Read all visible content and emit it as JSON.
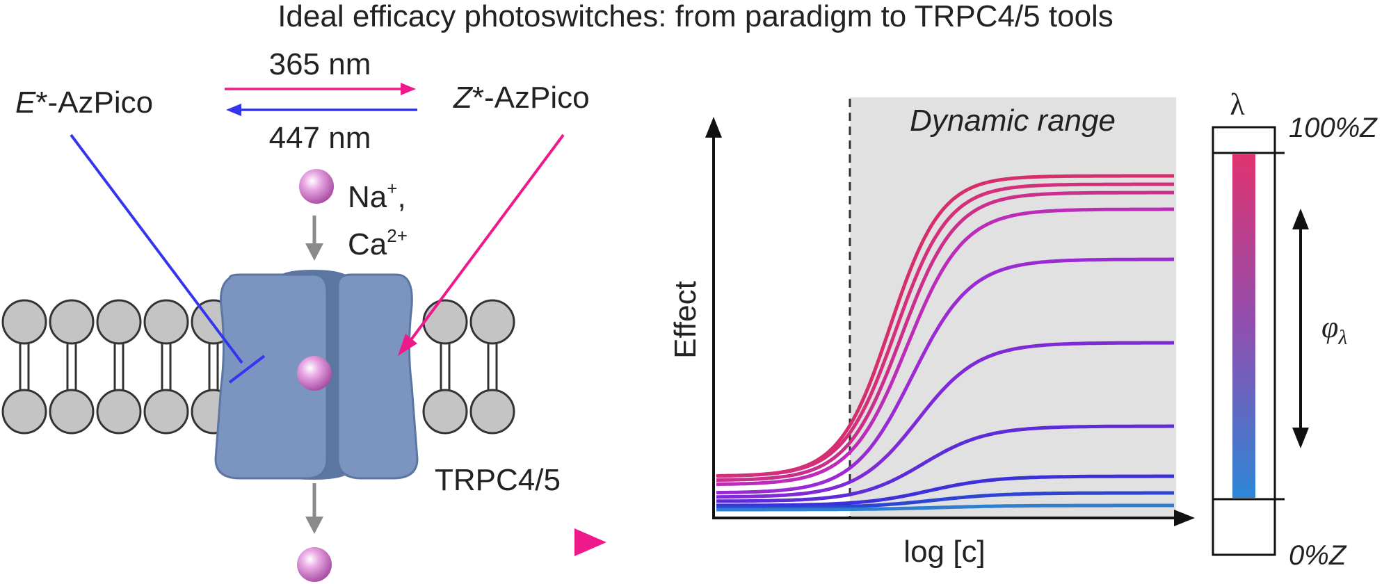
{
  "title": "Ideal efficacy photoswitches: from paradigm to TRPC4/5 tools",
  "left_panel": {
    "e_isomer_prefix": "E",
    "e_isomer_suffix": "*-AzPico",
    "z_isomer_prefix": "Z",
    "z_isomer_suffix": "*-AzPico",
    "forward_wavelength": "365 nm",
    "reverse_wavelength": "447 nm",
    "ion_line1": "Na",
    "ion_line1_sup": "+",
    "ion_line1_punct": ",",
    "ion_line2": "Ca",
    "ion_line2_sup": "2+",
    "channel_label": "TRPC4/5",
    "colors": {
      "blue_inhibit": "#3535f0",
      "magenta_activate": "#ee1a8c",
      "channel_body": "#7b95c0",
      "channel_dark": "#5c76a2",
      "lipid_head": "#c4c4c4"
    }
  },
  "chart_data": {
    "type": "line",
    "title": "",
    "xlabel": "log [c]",
    "ylabel": "Effect",
    "shaded_region_label": "Dynamic range",
    "threshold_x": 0.33,
    "series": [
      {
        "values_min": 0.08,
        "values_max": 0.8,
        "color": "#d62d6c"
      },
      {
        "values_min": 0.08,
        "values_max": 0.78,
        "color": "#d32f7a"
      },
      {
        "values_min": 0.07,
        "values_max": 0.76,
        "color": "#cc2e8c"
      },
      {
        "values_min": 0.06,
        "values_max": 0.72,
        "color": "#bb2cb8"
      },
      {
        "values_min": 0.04,
        "values_max": 0.6,
        "color": "#9a2ad3"
      },
      {
        "values_min": 0.03,
        "values_max": 0.4,
        "color": "#7e2ad6"
      },
      {
        "values_min": 0.02,
        "values_max": 0.2,
        "color": "#5c2cd8"
      },
      {
        "values_min": 0.01,
        "values_max": 0.08,
        "color": "#3c31d8"
      },
      {
        "values_min": 0.005,
        "values_max": 0.04,
        "color": "#2c45d4"
      },
      {
        "values_min": 0.0,
        "values_max": 0.01,
        "color": "#2f7fd0"
      }
    ],
    "colors": {
      "shade": "#e1e1e1",
      "axis": "#111111"
    }
  },
  "scale_bar": {
    "symbol": "λ",
    "top_label": "100%Z",
    "bottom_label": "0%Z",
    "range_symbol": "φ",
    "range_subscript": "λ",
    "gradient_top": "#e0336f",
    "gradient_bottom": "#2e86d6"
  }
}
